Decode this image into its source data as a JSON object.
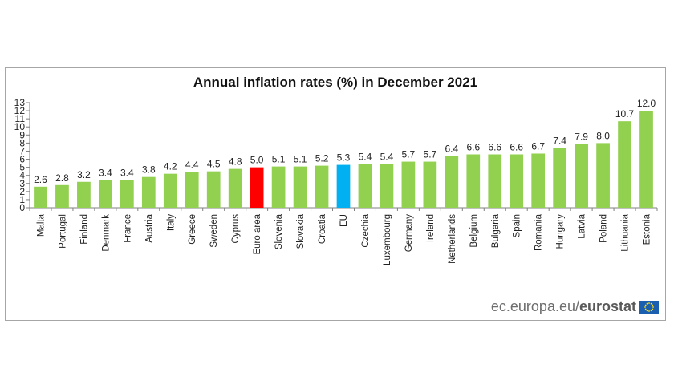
{
  "chart_data": {
    "type": "bar",
    "title": "Annual inflation rates (%) in December 2021",
    "xlabel": "",
    "ylabel": "",
    "ylim": [
      0,
      13
    ],
    "yticks": [
      0,
      1,
      2,
      3,
      4,
      5,
      6,
      7,
      8,
      9,
      10,
      11,
      12,
      13
    ],
    "grid": false,
    "categories": [
      "Malta",
      "Portugal",
      "Finland",
      "Denmark",
      "France",
      "Austria",
      "Italy",
      "Greece",
      "Sweden",
      "Cyprus",
      "Euro area",
      "Slovenia",
      "Slovakia",
      "Croatia",
      "EU",
      "Czechia",
      "Luxembourg",
      "Germany",
      "Ireland",
      "Netherlands",
      "Belgium",
      "Bulgaria",
      "Spain",
      "Romania",
      "Hungary",
      "Latvia",
      "Poland",
      "Lithuania",
      "Estonia"
    ],
    "values": [
      2.6,
      2.8,
      3.2,
      3.4,
      3.4,
      3.8,
      4.2,
      4.4,
      4.5,
      4.8,
      5.0,
      5.1,
      5.1,
      5.2,
      5.3,
      5.4,
      5.4,
      5.7,
      5.7,
      6.4,
      6.6,
      6.6,
      6.6,
      6.7,
      7.4,
      7.9,
      8.0,
      10.7,
      12.0
    ],
    "value_labels": [
      "2.6",
      "2.8",
      "3.2",
      "3.4",
      "3.4",
      "3.8",
      "4.2",
      "4.4",
      "4.5",
      "4.8",
      "5.0",
      "5.1",
      "5.1",
      "5.2",
      "5.3",
      "5.4",
      "5.4",
      "5.7",
      "5.7",
      "6.4",
      "6.6",
      "6.6",
      "6.6",
      "6.7",
      "7.4",
      "7.9",
      "8.0",
      "10.7",
      "12.0"
    ],
    "colors": {
      "default": "#92d050",
      "Euro area": "#ff0000",
      "EU": "#00b0f0"
    }
  },
  "source": {
    "site": "ec.europa.eu/",
    "brand": "eurostat"
  }
}
